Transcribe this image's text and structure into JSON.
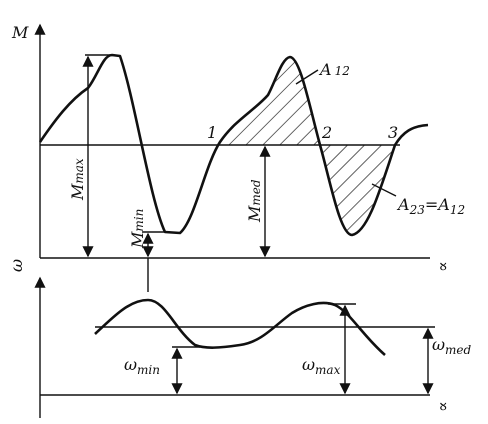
{
  "diagram": {
    "torque_axis": "M",
    "angle_axis_top": "∝",
    "points": [
      "1",
      "2",
      "3"
    ],
    "area_12": {
      "symbol": "A",
      "sub": "12"
    },
    "area_23": {
      "symbol": "A",
      "sub": "23",
      "eq": "=",
      "symbol2": "A",
      "sub2": "12"
    },
    "m_max": {
      "symbol": "M",
      "sub": "max"
    },
    "m_min": {
      "symbol": "M",
      "sub": "min"
    },
    "m_med": {
      "symbol": "M",
      "sub": "med"
    },
    "speed_axis": "ω",
    "angle_axis_bottom": "∝",
    "omega_min": {
      "symbol": "ω",
      "sub": "min"
    },
    "omega_max": {
      "symbol": "ω",
      "sub": "max"
    },
    "omega_med": {
      "symbol": "ω",
      "sub": "med"
    }
  }
}
